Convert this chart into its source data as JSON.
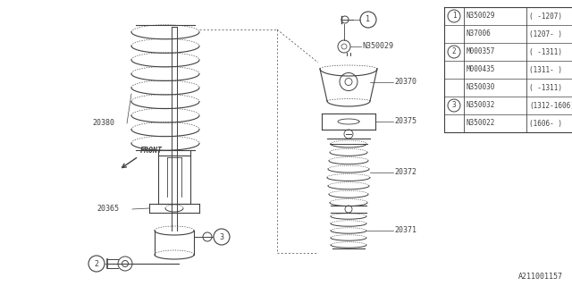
{
  "bg_color": "#ffffff",
  "line_color": "#404040",
  "footer": "A211001157",
  "table_rows": [
    [
      "1",
      "N350029",
      "( -1207)"
    ],
    [
      "",
      "N37006",
      "(1207- )"
    ],
    [
      "2",
      "M000357",
      "( -1311)"
    ],
    [
      "",
      "M000435",
      "(1311- )"
    ],
    [
      "",
      "N350030",
      "( -1311)"
    ],
    [
      "3",
      "N350032",
      "(1312-1606)"
    ],
    [
      "",
      "N350022",
      "(1606- )"
    ]
  ]
}
